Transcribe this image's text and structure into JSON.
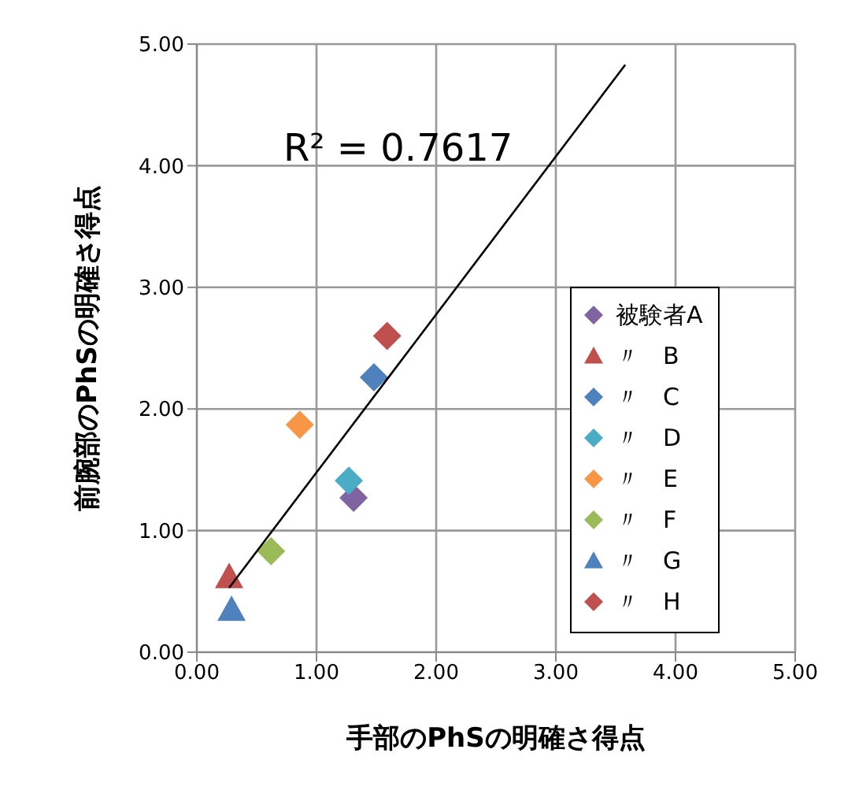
{
  "chart_data": {
    "type": "scatter",
    "xlabel": "手部のPhSの明確さ得点",
    "ylabel": "前腕部のPhSの明確さ得点",
    "xlim": [
      0,
      5
    ],
    "ylim": [
      0,
      5
    ],
    "xticks": [
      {
        "value": 0,
        "label": "0.00"
      },
      {
        "value": 1,
        "label": "1.00"
      },
      {
        "value": 2,
        "label": "2.00"
      },
      {
        "value": 3,
        "label": "3.00"
      },
      {
        "value": 4,
        "label": "4.00"
      },
      {
        "value": 5,
        "label": "5.00"
      }
    ],
    "yticks": [
      {
        "value": 0,
        "label": "0.00"
      },
      {
        "value": 1,
        "label": "1.00"
      },
      {
        "value": 2,
        "label": "2.00"
      },
      {
        "value": 3,
        "label": "3.00"
      },
      {
        "value": 4,
        "label": "4.00"
      },
      {
        "value": 5,
        "label": "5.00"
      }
    ],
    "grid": true,
    "legend": "right",
    "annotations": [
      "R² = 0.7617"
    ],
    "series": [
      {
        "name": "被験者A",
        "color": "#8064a2",
        "marker": "diamond",
        "x": [
          1.31
        ],
        "values": [
          1.27
        ]
      },
      {
        "name": "〃　B",
        "color": "#c0504d",
        "marker": "triangle",
        "x": [
          0.27
        ],
        "values": [
          0.62
        ]
      },
      {
        "name": "〃　C",
        "color": "#4f81bd",
        "marker": "diamond",
        "x": [
          1.48
        ],
        "values": [
          2.26
        ]
      },
      {
        "name": "〃　D",
        "color": "#4bacc6",
        "marker": "diamond",
        "x": [
          1.27
        ],
        "values": [
          1.41
        ]
      },
      {
        "name": "〃　E",
        "color": "#f79646",
        "marker": "diamond",
        "x": [
          0.86
        ],
        "values": [
          1.87
        ]
      },
      {
        "name": "〃　F",
        "color": "#9bbb59",
        "marker": "diamond",
        "x": [
          0.62
        ],
        "values": [
          0.83
        ]
      },
      {
        "name": "〃　G",
        "color": "#4f81bd",
        "marker": "triangle",
        "x": [
          0.29
        ],
        "values": [
          0.35
        ]
      },
      {
        "name": "〃　H",
        "color": "#c0504d",
        "marker": "diamond",
        "x": [
          1.59
        ],
        "values": [
          2.6
        ]
      },
      {
        "type": "line",
        "color": "#000000",
        "marker": "none",
        "x": [
          0.27,
          3.58
        ],
        "values": [
          0.53,
          4.83
        ]
      }
    ]
  }
}
